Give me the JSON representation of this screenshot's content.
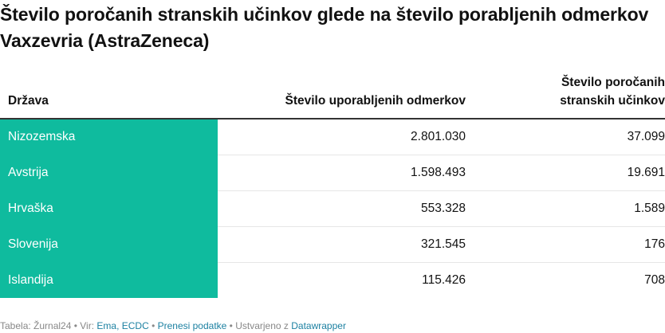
{
  "title": "Število poročanih stranskih učinkov glede na število porabljenih odmerkov Vaxzevria (AstraZeneca)",
  "table": {
    "headers": {
      "country": "Država",
      "doses": "Število uporabljenih odmerkov",
      "effects_line1": "Število poročanih",
      "effects_line2": "stranskih učinkov"
    },
    "rows": [
      {
        "country": "Nizozemska",
        "doses": "2.801.030",
        "effects": "37.099"
      },
      {
        "country": "Avstrija",
        "doses": "1.598.493",
        "effects": "19.691"
      },
      {
        "country": "Hrvaška",
        "doses": "553.328",
        "effects": "1.589"
      },
      {
        "country": "Slovenija",
        "doses": "321.545",
        "effects": "176"
      },
      {
        "country": "Islandija",
        "doses": "115.426",
        "effects": "708"
      }
    ],
    "highlight_color": "#0fbb9e"
  },
  "footer": {
    "prefix": "Tabela: Žurnal24 • Vir: ",
    "source_link": "Ema, ECDC",
    "sep1": " • ",
    "download_link": "Prenesi podatke",
    "sep2": " • Ustvarjeno z ",
    "tool_link": "Datawrapper"
  }
}
